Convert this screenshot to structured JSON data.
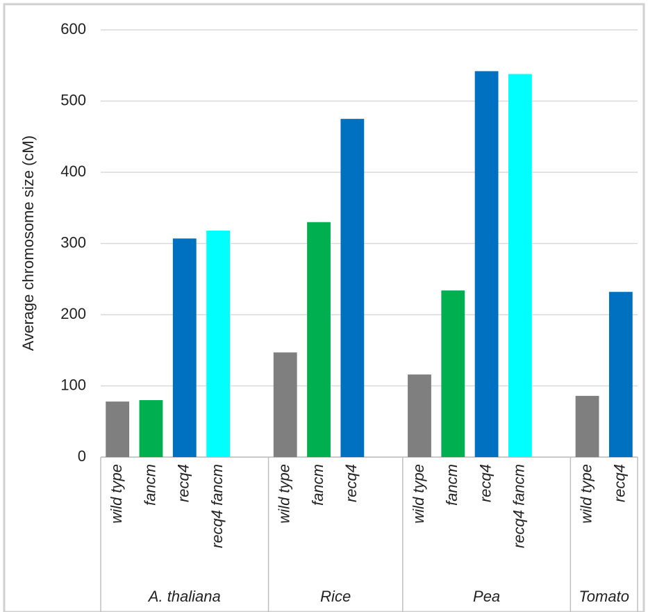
{
  "chart_data": {
    "type": "grouped-bar",
    "y_label": "Average chromosome size (cM)",
    "ylim": [
      0,
      600
    ],
    "yticks": [
      0,
      100,
      200,
      300,
      400,
      500,
      600
    ],
    "grid": true,
    "groups": [
      {
        "name": "A. thaliana",
        "categories": [
          "wild type",
          "fancm",
          "recq4",
          "recq4 fancm"
        ],
        "values": [
          78,
          80,
          307,
          318
        ],
        "colors": [
          "#7f7f7f",
          "#00b050",
          "#0070c0",
          "#00ffff"
        ]
      },
      {
        "name": "Rice",
        "categories": [
          "wild type",
          "fancm",
          "recq4"
        ],
        "values": [
          147,
          330,
          475
        ],
        "colors": [
          "#7f7f7f",
          "#00b050",
          "#0070c0"
        ]
      },
      {
        "name": "Pea",
        "categories": [
          "wild type",
          "fancm",
          "recq4",
          "recq4 fancm"
        ],
        "values": [
          116,
          234,
          542,
          538
        ],
        "colors": [
          "#7f7f7f",
          "#00b050",
          "#0070c0",
          "#00ffff"
        ]
      },
      {
        "name": "Tomato",
        "categories": [
          "wild type",
          "recq4"
        ],
        "values": [
          86,
          232
        ],
        "colors": [
          "#7f7f7f",
          "#0070c0"
        ]
      }
    ]
  }
}
